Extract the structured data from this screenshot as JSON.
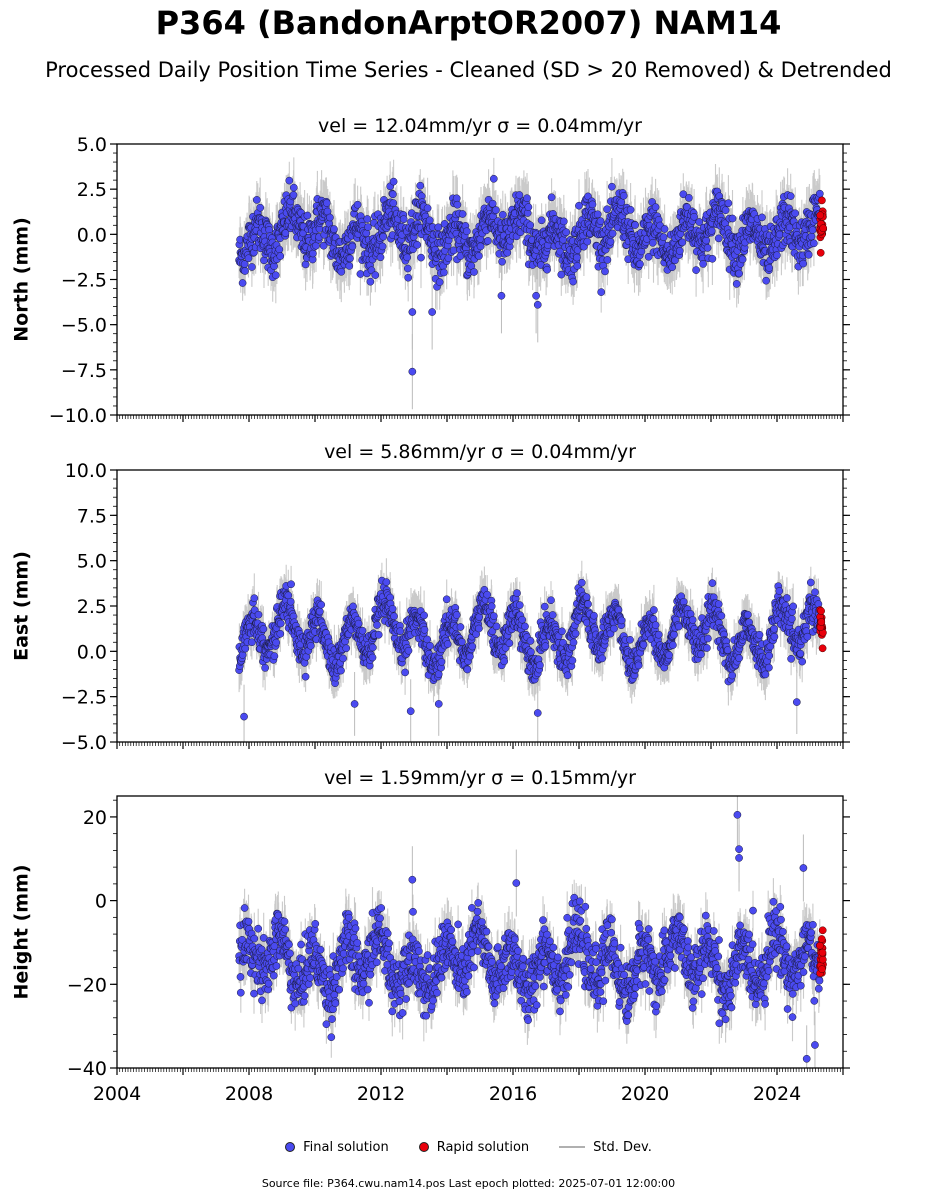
{
  "title": "P364 (BandonArptOR2007) NAM14",
  "subtitle": "Processed Daily Position Time Series - Cleaned (SD > 20 Removed) & Detrended",
  "legend": {
    "final_label": "Final solution",
    "rapid_label": "Rapid solution",
    "std_label": "Std. Dev.",
    "final_color": "#4a4af0",
    "rapid_color": "#e8000b",
    "std_color": "#b0b0b0"
  },
  "footer": "Source file: P364.cwu.nam14.pos  Last epoch plotted: 2025-07-01 12:00:00",
  "chart_data": [
    {
      "type": "scatter",
      "title": "vel = 12.04mm/yr   σ = 0.04mm/yr",
      "ylabel": "North (mm)",
      "xlim": [
        2004,
        2026
      ],
      "ylim": [
        -10,
        5
      ],
      "yticks": [
        -10.0,
        -7.5,
        -5.0,
        -2.5,
        0.0,
        2.5,
        5.0
      ],
      "x_range_final": [
        2007.7,
        2025.3
      ],
      "x_range_rapid": [
        2025.3,
        2025.5
      ],
      "amplitude": 0.9,
      "noise": 0.7,
      "sigma": 1.3,
      "center": 0.0,
      "outliers": [
        {
          "x": 2012.95,
          "y": -7.6
        },
        {
          "x": 2012.95,
          "y": -4.3
        },
        {
          "x": 2013.55,
          "y": -4.3
        },
        {
          "x": 2015.65,
          "y": -3.4
        },
        {
          "x": 2016.75,
          "y": -3.9
        },
        {
          "x": 2016.7,
          "y": -3.4
        }
      ]
    },
    {
      "type": "scatter",
      "title": "vel = 5.86mm/yr   σ = 0.04mm/yr",
      "ylabel": "East (mm)",
      "xlim": [
        2004,
        2026
      ],
      "ylim": [
        -5,
        10
      ],
      "yticks": [
        -5.0,
        -2.5,
        0.0,
        2.5,
        5.0,
        7.5,
        10.0
      ],
      "x_range_final": [
        2007.7,
        2025.3
      ],
      "x_range_rapid": [
        2025.3,
        2025.5
      ],
      "amplitude": 1.2,
      "noise": 0.5,
      "sigma": 1.1,
      "center": 0.9,
      "outliers": [
        {
          "x": 2007.85,
          "y": -3.6
        },
        {
          "x": 2012.9,
          "y": -3.3
        },
        {
          "x": 2011.2,
          "y": -2.9
        },
        {
          "x": 2013.75,
          "y": -2.9
        },
        {
          "x": 2016.75,
          "y": -3.4
        },
        {
          "x": 2024.6,
          "y": -2.8
        }
      ]
    },
    {
      "type": "scatter",
      "title": "vel = 1.59mm/yr   σ = 0.15mm/yr",
      "ylabel": "Height (mm)",
      "xlim": [
        2004,
        2026
      ],
      "ylim": [
        -40,
        25
      ],
      "yticks": [
        -40,
        -20,
        0,
        20
      ],
      "x_range_final": [
        2007.7,
        2025.3
      ],
      "x_range_rapid": [
        2025.3,
        2025.5
      ],
      "amplitude": 5.0,
      "noise": 3.5,
      "sigma": 5.0,
      "center": -15.0,
      "outliers": [
        {
          "x": 2022.8,
          "y": 20.5
        },
        {
          "x": 2022.85,
          "y": 12.3
        },
        {
          "x": 2022.85,
          "y": 10.2
        },
        {
          "x": 2012.95,
          "y": 5.0
        },
        {
          "x": 2024.8,
          "y": 7.8
        },
        {
          "x": 2024.9,
          "y": -37.8
        },
        {
          "x": 2025.15,
          "y": -34.5
        },
        {
          "x": 2016.1,
          "y": 4.2
        }
      ]
    }
  ],
  "x_axis": {
    "ticks": [
      2004,
      2008,
      2012,
      2016,
      2020,
      2024
    ]
  }
}
